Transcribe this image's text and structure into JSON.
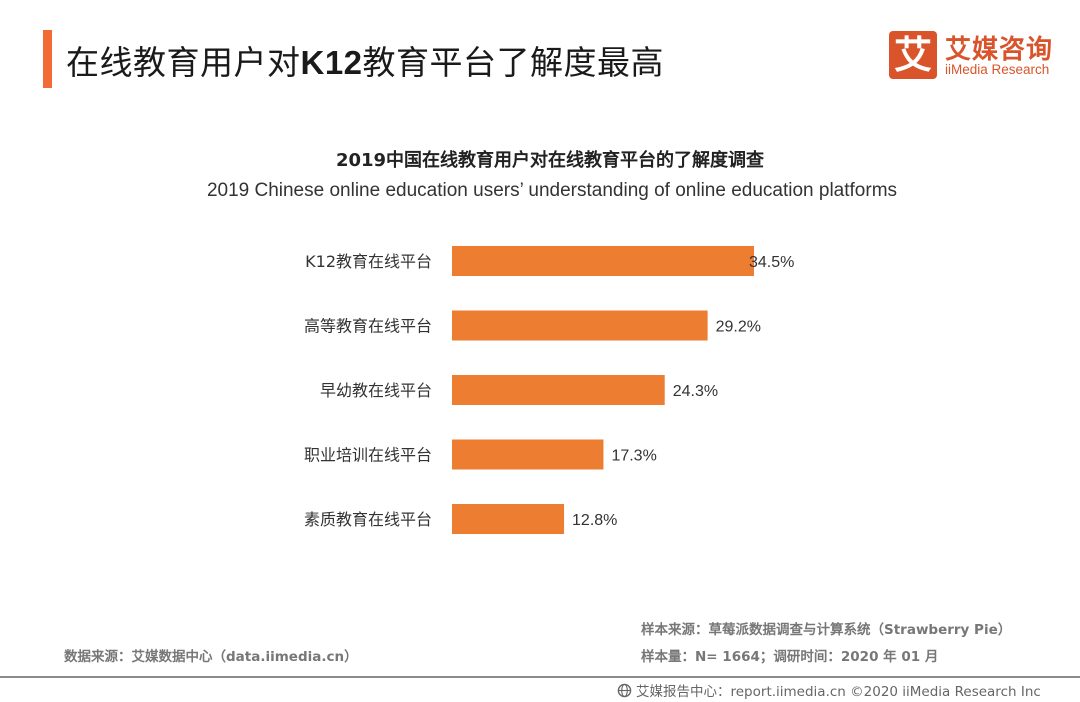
{
  "header": {
    "title_prefix": "在线教育用户对",
    "title_bold": "K12",
    "title_suffix": "教育平台了解度最高",
    "accent_color": "#f26b35"
  },
  "logo": {
    "mark": "艾",
    "name_cn": "艾媒咨询",
    "name_en": "iiMedia Research",
    "color": "#d9542b"
  },
  "chart_data": {
    "type": "bar",
    "orientation": "horizontal",
    "title": "2019中国在线教育用户对在线教育平台的了解度调查",
    "subtitle": "2019 Chinese online education users’  understanding of online education platforms",
    "categories": [
      "K12教育在线平台",
      "高等教育在线平台",
      "早幼教在线平台",
      "职业培训在线平台",
      "素质教育在线平台"
    ],
    "values": [
      34.5,
      29.2,
      24.3,
      17.3,
      12.8
    ],
    "value_labels": [
      "34.5%",
      "29.2%",
      "24.3%",
      "17.3%",
      "12.8%"
    ],
    "unit": "%",
    "xlabel": "",
    "ylabel": "",
    "xlim": [
      0,
      34.5
    ],
    "grid": false,
    "legend": "none",
    "bar_color": "#ed7d31"
  },
  "footer": {
    "data_source": "数据来源：艾媒数据中心（data.iimedia.cn）",
    "sample_source": "样本来源：草莓派数据调查与计算系统（Strawberry   Pie）",
    "sample_info": "样本量：N= 1664；调研时间：2020 年 01 月",
    "copyright": "艾媒报告中心：report.iimedia.cn  ©2020  iiMedia Research Inc",
    "icon": "globe-icon"
  }
}
